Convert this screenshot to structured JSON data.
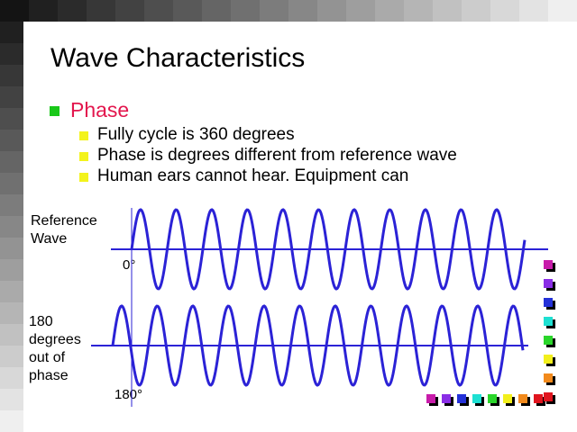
{
  "title": "Wave Characteristics",
  "bullet": "Phase",
  "sub_bullets": [
    "Fully cycle is 360 degrees",
    "Phase is degrees different from reference wave",
    "Human ears cannot hear.  Equipment can"
  ],
  "reference_label": [
    "Reference",
    "Wave"
  ],
  "zero_label": "0°",
  "phase_label": [
    "180",
    "degrees",
    "out of",
    "phase"
  ],
  "one_eighty_label": "180°",
  "colors": {
    "title": "#000000",
    "bullet_text": "#e3164d",
    "main_bullet_square": "#19c819",
    "sub_bullet_square": "#f3f31c",
    "wave": "#2b22d6",
    "axis": "#2b22d6"
  },
  "nav_right_colors": [
    "#c81caa",
    "#8a2ee6",
    "#2431d8",
    "#1ee0d2",
    "#2ad62a",
    "#f2ef1c",
    "#f28a1c",
    "#e0141e"
  ],
  "nav_bottom_colors": [
    "#c81caa",
    "#8a2ee6",
    "#2431d8",
    "#1ee0d2",
    "#2ad62a",
    "#f2ef1c",
    "#f28a1c",
    "#e0141e"
  ],
  "icons": [
    "main-bullet-square-icon",
    "sub-bullet-square-icon",
    "nav-square-icon"
  ]
}
